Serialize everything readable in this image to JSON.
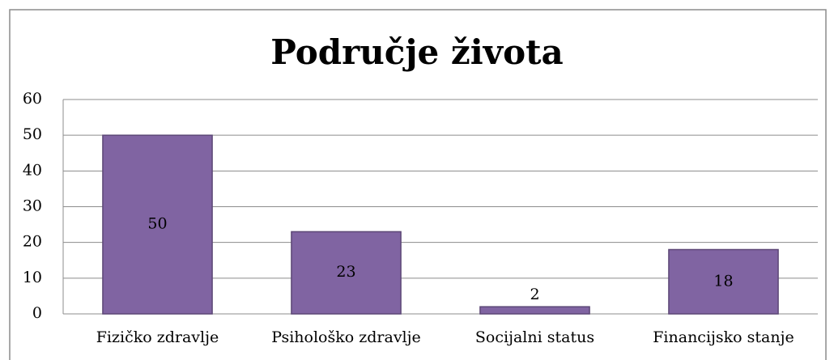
{
  "chart_data": {
    "type": "bar",
    "title": "Područje života",
    "categories": [
      "Fizičko zdravlje",
      "Psihološko zdravlje",
      "Socijalni status",
      "Financijsko stanje"
    ],
    "values": [
      50,
      23,
      2,
      18
    ],
    "color": "#8064a2",
    "ylim": [
      0,
      60
    ],
    "yticks": [
      0,
      10,
      20,
      30,
      40,
      50,
      60
    ],
    "grid": true
  }
}
